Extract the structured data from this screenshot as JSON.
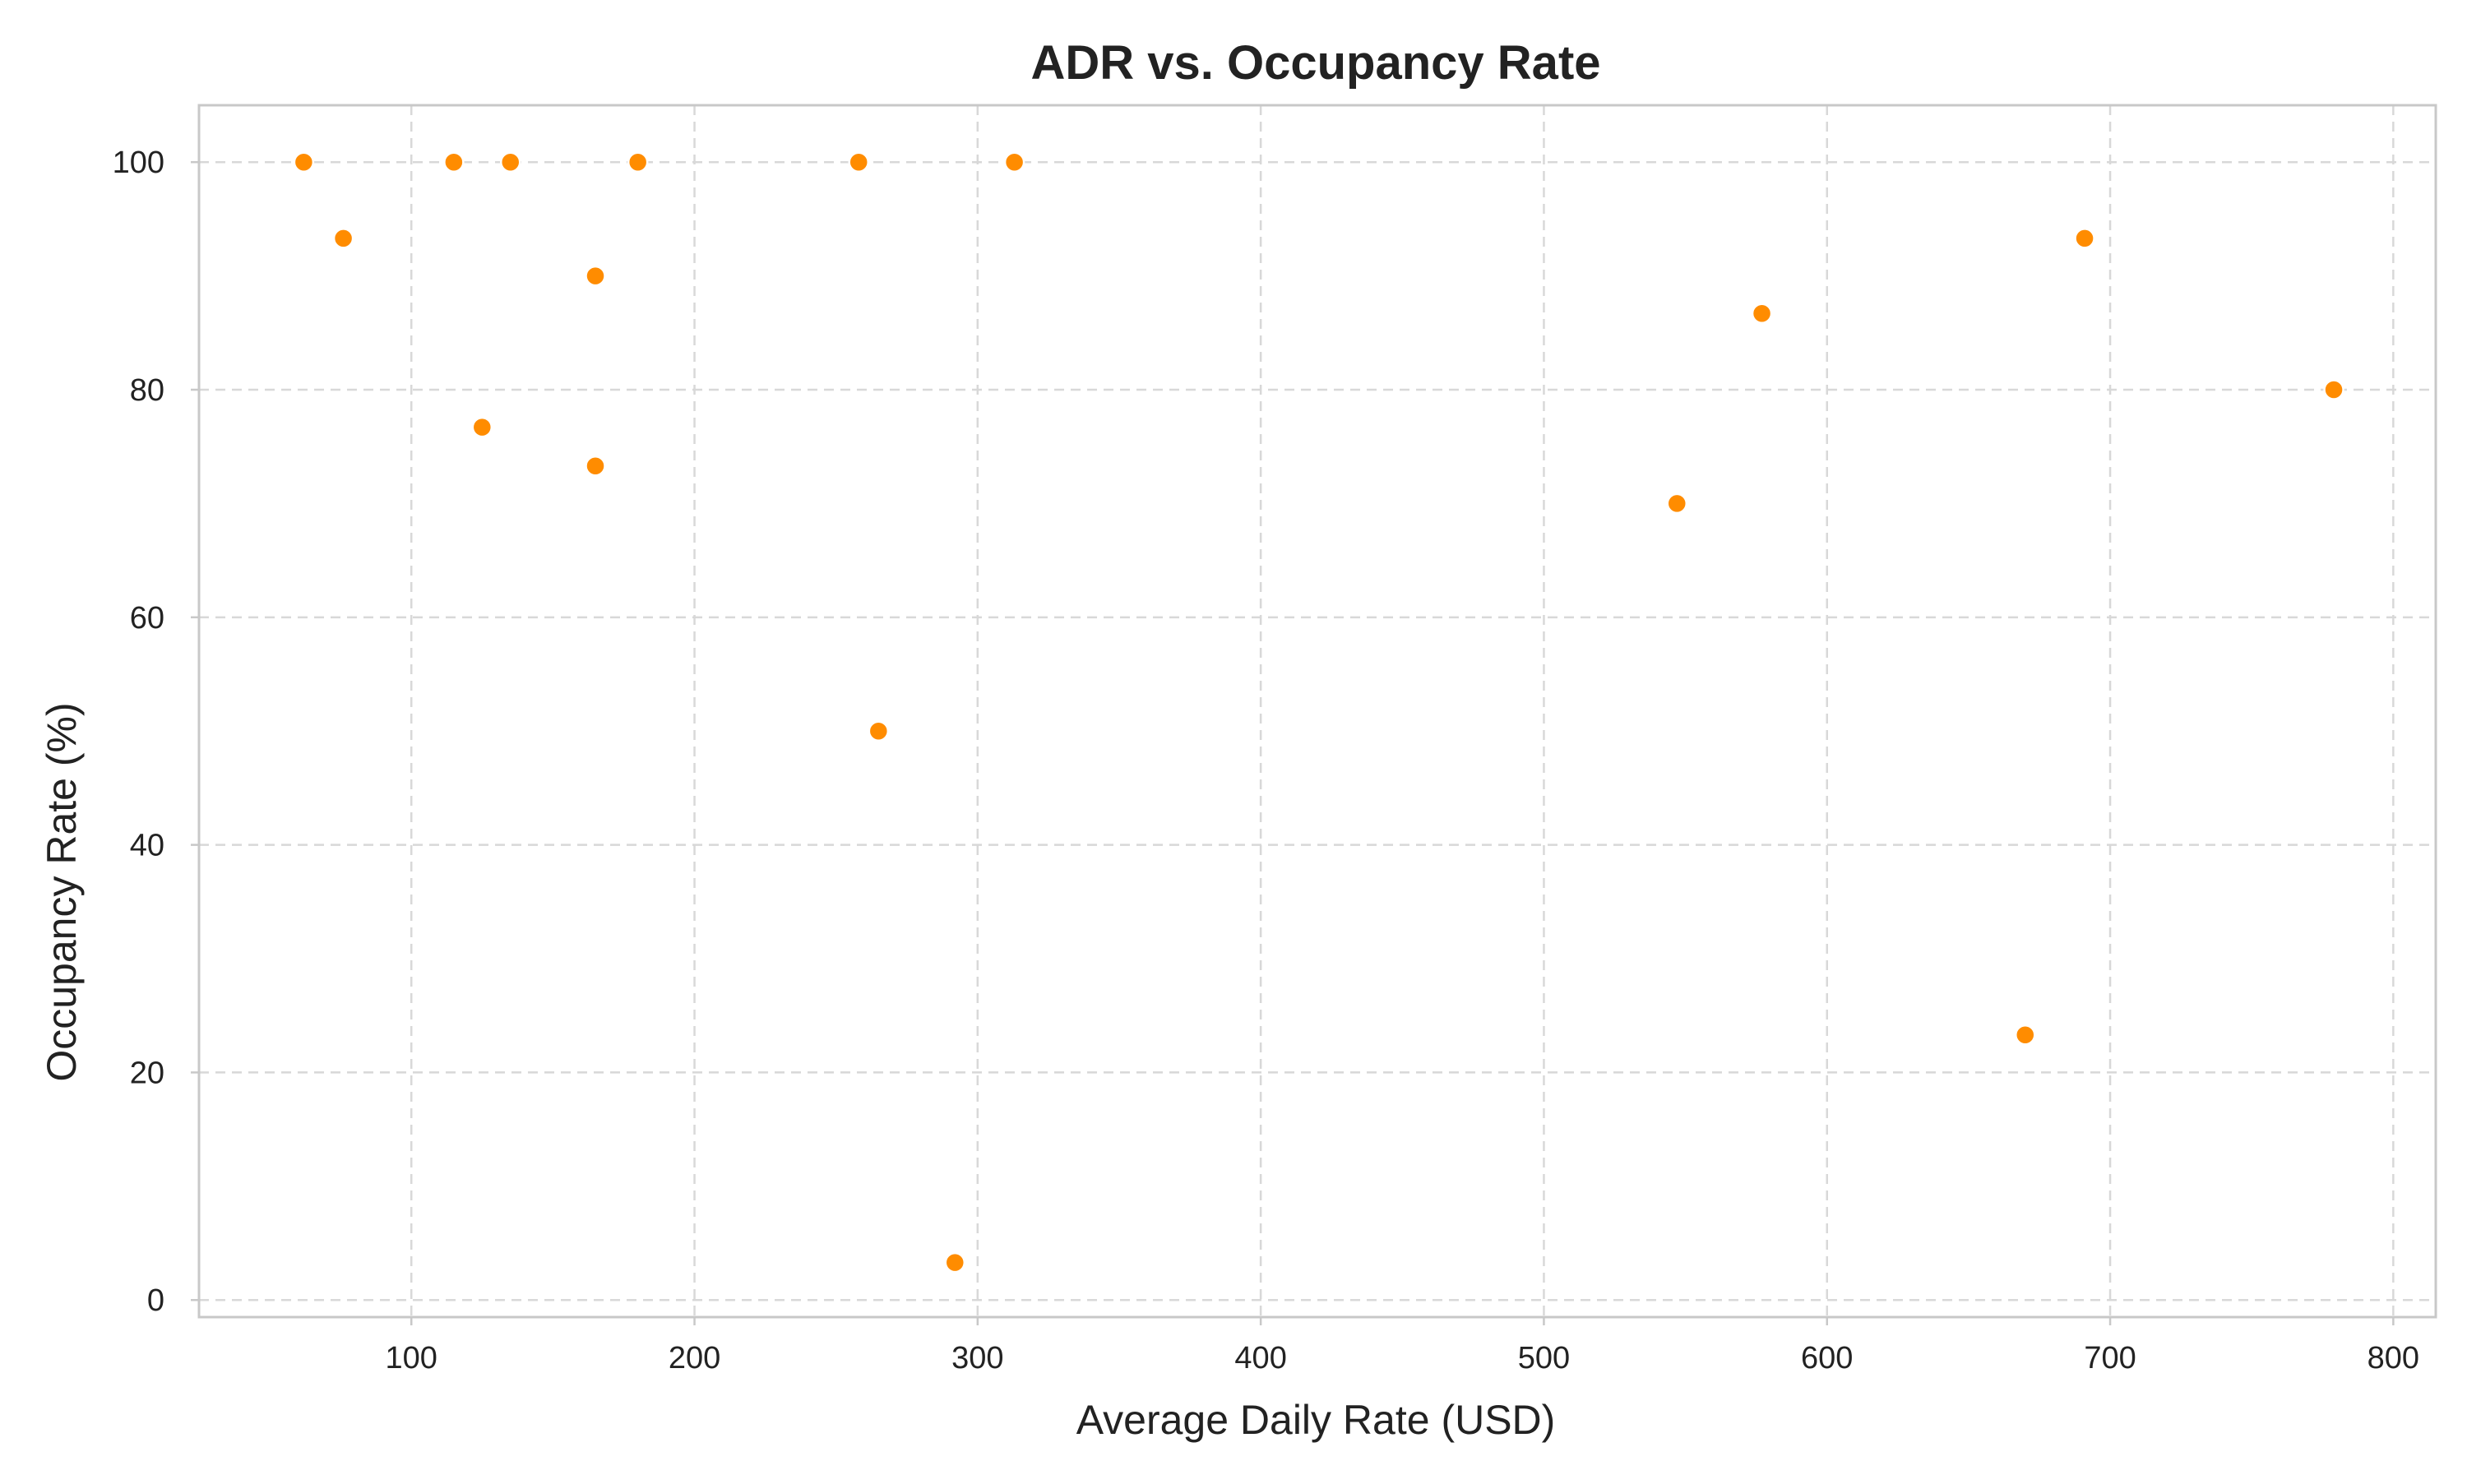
{
  "chart_data": {
    "type": "scatter",
    "title": "ADR vs. Occupancy Rate",
    "xlabel": "Average Daily Rate (USD)",
    "ylabel": "Occupancy Rate (%)",
    "xlim": [
      25,
      815
    ],
    "ylim": [
      -1.5,
      105
    ],
    "xticks": [
      100,
      200,
      300,
      400,
      500,
      600,
      700,
      800
    ],
    "yticks": [
      0,
      20,
      40,
      60,
      80,
      100
    ],
    "grid": true,
    "marker_color": "#ff8c00",
    "points": [
      {
        "x": 62,
        "y": 100
      },
      {
        "x": 76,
        "y": 93.3
      },
      {
        "x": 115,
        "y": 100
      },
      {
        "x": 125,
        "y": 76.7
      },
      {
        "x": 135,
        "y": 100
      },
      {
        "x": 165,
        "y": 90
      },
      {
        "x": 165,
        "y": 73.3
      },
      {
        "x": 180,
        "y": 100
      },
      {
        "x": 258,
        "y": 100
      },
      {
        "x": 265,
        "y": 50
      },
      {
        "x": 292,
        "y": 3.3
      },
      {
        "x": 313,
        "y": 100
      },
      {
        "x": 547,
        "y": 70
      },
      {
        "x": 577,
        "y": 86.7
      },
      {
        "x": 670,
        "y": 23.3
      },
      {
        "x": 691,
        "y": 93.3
      },
      {
        "x": 779,
        "y": 80
      }
    ]
  }
}
